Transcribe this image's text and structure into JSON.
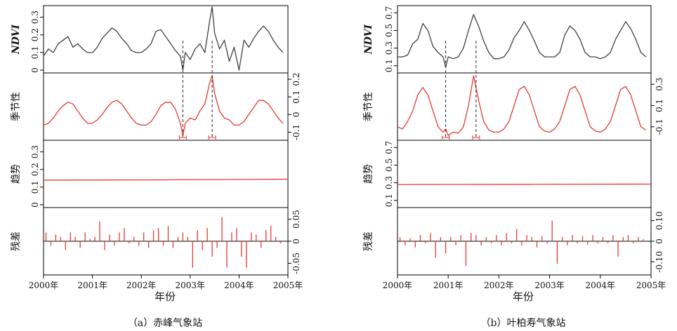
{
  "chart_data": [
    {
      "type": "line",
      "caption": "（a）赤峰气象站",
      "xlabel": "年份",
      "x_ticks": [
        "2000年",
        "2001年",
        "2002年",
        "2003年",
        "2004年",
        "2005年"
      ],
      "xlim": [
        2000,
        2005
      ],
      "panels": [
        {
          "ylabel": "NDVI",
          "ylim": [
            0,
            0.35
          ],
          "ticks": [
            0,
            0.1,
            0.2,
            0.3
          ],
          "tick_labels": [
            "0",
            "0.1",
            "0.2",
            "0.3"
          ],
          "tick_side": "left",
          "series_color": "#404040",
          "kind": "line",
          "x": [
            2000.0,
            2000.1,
            2000.2,
            2000.3,
            2000.4,
            2000.5,
            2000.6,
            2000.7,
            2000.8,
            2000.9,
            2001.0,
            2001.1,
            2001.2,
            2001.3,
            2001.4,
            2001.5,
            2001.6,
            2001.7,
            2001.8,
            2001.9,
            2002.0,
            2002.1,
            2002.2,
            2002.3,
            2002.4,
            2002.5,
            2002.6,
            2002.7,
            2002.8,
            2002.85,
            2002.9,
            2003.0,
            2003.1,
            2003.2,
            2003.3,
            2003.4,
            2003.45,
            2003.5,
            2003.6,
            2003.7,
            2003.8,
            2003.9,
            2004.0,
            2004.1,
            2004.2,
            2004.3,
            2004.4,
            2004.5,
            2004.6,
            2004.7,
            2004.8,
            2004.9
          ],
          "y": [
            0.08,
            0.12,
            0.1,
            0.15,
            0.17,
            0.19,
            0.13,
            0.15,
            0.12,
            0.1,
            0.1,
            0.13,
            0.18,
            0.21,
            0.24,
            0.22,
            0.18,
            0.15,
            0.11,
            0.1,
            0.1,
            0.12,
            0.15,
            0.22,
            0.23,
            0.19,
            0.15,
            0.11,
            0.08,
            0.0,
            0.1,
            0.06,
            0.12,
            0.15,
            0.1,
            0.28,
            0.36,
            0.21,
            0.12,
            0.17,
            0.05,
            0.13,
            0.0,
            0.17,
            0.13,
            0.18,
            0.22,
            0.25,
            0.22,
            0.17,
            0.13,
            0.1
          ]
        },
        {
          "ylabel": "季节性",
          "ylim": [
            -0.13,
            0.22
          ],
          "ticks": [
            -0.1,
            0,
            0.1,
            0.2
          ],
          "tick_labels": [
            "-0.1",
            "0",
            "0.1",
            "0.2"
          ],
          "tick_side": "right",
          "series_color": "#e8392f",
          "kind": "line",
          "x": [
            2000.0,
            2000.1,
            2000.2,
            2000.3,
            2000.4,
            2000.5,
            2000.6,
            2000.7,
            2000.8,
            2000.9,
            2001.0,
            2001.1,
            2001.2,
            2001.3,
            2001.4,
            2001.5,
            2001.6,
            2001.7,
            2001.8,
            2001.9,
            2002.0,
            2002.1,
            2002.2,
            2002.3,
            2002.4,
            2002.5,
            2002.6,
            2002.7,
            2002.8,
            2002.85,
            2002.9,
            2003.0,
            2003.1,
            2003.2,
            2003.3,
            2003.4,
            2003.45,
            2003.5,
            2003.6,
            2003.7,
            2003.8,
            2003.9,
            2004.0,
            2004.1,
            2004.2,
            2004.3,
            2004.4,
            2004.5,
            2004.6,
            2004.7,
            2004.8,
            2004.9
          ],
          "y": [
            -0.06,
            -0.05,
            -0.02,
            0.02,
            0.05,
            0.07,
            0.06,
            0.02,
            -0.02,
            -0.05,
            -0.05,
            -0.03,
            0.0,
            0.04,
            0.07,
            0.08,
            0.06,
            0.02,
            -0.02,
            -0.05,
            -0.06,
            -0.06,
            -0.04,
            0.0,
            0.05,
            0.07,
            0.07,
            0.03,
            -0.05,
            -0.12,
            -0.05,
            -0.02,
            -0.03,
            0.02,
            0.06,
            0.18,
            0.22,
            0.12,
            0.02,
            -0.02,
            -0.03,
            -0.06,
            -0.06,
            -0.04,
            0.0,
            0.04,
            0.08,
            0.08,
            0.06,
            0.02,
            -0.02,
            -0.05
          ]
        },
        {
          "ylabel": "趋势",
          "ylim": [
            0,
            0.35
          ],
          "ticks": [
            0,
            0.1,
            0.2,
            0.3
          ],
          "tick_labels": [
            "0",
            "0.1",
            "0.2",
            "0.3"
          ],
          "tick_side": "left",
          "series_color": "#e8392f",
          "kind": "line",
          "x": [
            2000.0,
            2002.5,
            2005.0
          ],
          "y": [
            0.14,
            0.141,
            0.145
          ]
        },
        {
          "ylabel": "残差",
          "ylim": [
            -0.07,
            0.07
          ],
          "ticks": [
            -0.05,
            0,
            0.05
          ],
          "tick_labels": [
            "-0.05",
            "0",
            "0.05"
          ],
          "tick_side": "right",
          "series_color": "#e8392f",
          "kind": "stem",
          "x": [
            2000.05,
            2000.15,
            2000.25,
            2000.35,
            2000.45,
            2000.55,
            2000.65,
            2000.75,
            2000.85,
            2000.95,
            2001.05,
            2001.15,
            2001.25,
            2001.35,
            2001.45,
            2001.55,
            2001.65,
            2001.75,
            2001.85,
            2001.95,
            2002.05,
            2002.15,
            2002.25,
            2002.35,
            2002.45,
            2002.55,
            2002.65,
            2002.75,
            2002.85,
            2002.95,
            2003.05,
            2003.15,
            2003.25,
            2003.35,
            2003.45,
            2003.55,
            2003.65,
            2003.75,
            2003.85,
            2003.95,
            2004.05,
            2004.15,
            2004.25,
            2004.35,
            2004.45,
            2004.55,
            2004.65,
            2004.75,
            2004.85
          ],
          "y": [
            0.02,
            -0.01,
            0.015,
            0.01,
            -0.02,
            0.02,
            0.01,
            -0.015,
            0.02,
            0.005,
            0.01,
            0.045,
            -0.02,
            0.015,
            -0.01,
            0.02,
            0.03,
            -0.005,
            0.01,
            -0.01,
            0.02,
            -0.015,
            0.025,
            0.03,
            -0.01,
            0.035,
            -0.015,
            0.01,
            0.02,
            0.01,
            -0.06,
            0.025,
            -0.02,
            0.03,
            -0.035,
            -0.015,
            0.055,
            -0.06,
            0.02,
            0.03,
            -0.035,
            -0.06,
            0.02,
            0.015,
            -0.015,
            0.025,
            0.035,
            0.01,
            -0.005
          ]
        }
      ]
    },
    {
      "type": "line",
      "caption": "（b）叶柏寿气象站",
      "xlabel": "年份",
      "x_ticks": [
        "2000年",
        "2001年",
        "2002年",
        "2003年",
        "2004年",
        "2005年"
      ],
      "xlim": [
        2000,
        2005
      ],
      "panels": [
        {
          "ylabel": "NDVI",
          "ylim": [
            0.05,
            0.75
          ],
          "ticks": [
            0.1,
            0.3,
            0.5,
            0.7
          ],
          "tick_labels": [
            "0.1",
            "0.3",
            "0.5",
            "0.7"
          ],
          "tick_side": "left",
          "series_color": "#404040",
          "kind": "line",
          "x": [
            2000.0,
            2000.1,
            2000.2,
            2000.3,
            2000.4,
            2000.5,
            2000.6,
            2000.7,
            2000.8,
            2000.9,
            2000.95,
            2001.0,
            2001.1,
            2001.2,
            2001.3,
            2001.4,
            2001.5,
            2001.6,
            2001.7,
            2001.8,
            2001.9,
            2002.0,
            2002.1,
            2002.2,
            2002.3,
            2002.4,
            2002.5,
            2002.6,
            2002.7,
            2002.8,
            2002.9,
            2003.0,
            2003.1,
            2003.2,
            2003.3,
            2003.4,
            2003.5,
            2003.6,
            2003.7,
            2003.8,
            2003.9,
            2004.0,
            2004.1,
            2004.2,
            2004.3,
            2004.4,
            2004.5,
            2004.6,
            2004.7,
            2004.8,
            2004.9
          ],
          "y": [
            0.2,
            0.2,
            0.22,
            0.35,
            0.4,
            0.58,
            0.5,
            0.32,
            0.25,
            0.2,
            0.08,
            0.2,
            0.18,
            0.2,
            0.3,
            0.5,
            0.68,
            0.55,
            0.38,
            0.25,
            0.18,
            0.18,
            0.2,
            0.28,
            0.42,
            0.5,
            0.6,
            0.5,
            0.38,
            0.25,
            0.2,
            0.2,
            0.2,
            0.25,
            0.45,
            0.55,
            0.5,
            0.4,
            0.25,
            0.2,
            0.2,
            0.18,
            0.2,
            0.25,
            0.4,
            0.5,
            0.6,
            0.52,
            0.4,
            0.25,
            0.2
          ]
        },
        {
          "ylabel": "季节性",
          "ylim": [
            -0.2,
            0.38
          ],
          "ticks": [
            -0.1,
            0.1,
            0.3
          ],
          "tick_labels": [
            "-0.1",
            "0.1",
            "0.3"
          ],
          "tick_side": "right",
          "series_color": "#e8392f",
          "kind": "line",
          "x": [
            2000.0,
            2000.1,
            2000.2,
            2000.3,
            2000.4,
            2000.5,
            2000.6,
            2000.7,
            2000.8,
            2000.9,
            2000.95,
            2001.0,
            2001.1,
            2001.2,
            2001.3,
            2001.4,
            2001.5,
            2001.6,
            2001.7,
            2001.8,
            2001.9,
            2002.0,
            2002.1,
            2002.2,
            2002.3,
            2002.4,
            2002.5,
            2002.6,
            2002.7,
            2002.8,
            2002.9,
            2003.0,
            2003.1,
            2003.2,
            2003.3,
            2003.4,
            2003.5,
            2003.6,
            2003.7,
            2003.8,
            2003.9,
            2004.0,
            2004.1,
            2004.2,
            2004.3,
            2004.4,
            2004.5,
            2004.6,
            2004.7,
            2004.8,
            2004.9
          ],
          "y": [
            -0.1,
            -0.12,
            -0.05,
            0.05,
            0.2,
            0.27,
            0.2,
            0.05,
            -0.1,
            -0.15,
            -0.12,
            -0.18,
            -0.15,
            -0.16,
            -0.1,
            0.1,
            0.38,
            0.15,
            -0.05,
            -0.13,
            -0.15,
            -0.15,
            -0.12,
            -0.05,
            0.1,
            0.25,
            0.28,
            0.2,
            0.05,
            -0.1,
            -0.14,
            -0.15,
            -0.12,
            -0.05,
            0.1,
            0.25,
            0.28,
            0.2,
            0.05,
            -0.1,
            -0.14,
            -0.15,
            -0.12,
            -0.05,
            0.1,
            0.25,
            0.28,
            0.2,
            0.05,
            -0.1,
            -0.13
          ]
        },
        {
          "ylabel": "趋势",
          "ylim": [
            0.05,
            0.75
          ],
          "ticks": [
            0.1,
            0.3,
            0.5,
            0.7
          ],
          "tick_labels": [
            "0.1",
            "0.3",
            "0.5",
            "0.7"
          ],
          "tick_side": "left",
          "series_color": "#e8392f",
          "kind": "line",
          "x": [
            2000.0,
            2002.5,
            2005.0
          ],
          "y": [
            0.28,
            0.282,
            0.285
          ]
        },
        {
          "ylabel": "残差",
          "ylim": [
            -0.15,
            0.15
          ],
          "ticks": [
            -0.1,
            0,
            0.1
          ],
          "tick_labels": [
            "-0.10",
            "0",
            "0.10"
          ],
          "tick_side": "right",
          "series_color": "#e8392f",
          "kind": "stem",
          "x": [
            2000.05,
            2000.15,
            2000.25,
            2000.35,
            2000.45,
            2000.55,
            2000.65,
            2000.75,
            2000.85,
            2000.95,
            2001.05,
            2001.15,
            2001.25,
            2001.35,
            2001.45,
            2001.55,
            2001.65,
            2001.75,
            2001.85,
            2001.95,
            2002.05,
            2002.15,
            2002.25,
            2002.35,
            2002.45,
            2002.55,
            2002.65,
            2002.75,
            2002.85,
            2002.95,
            2003.05,
            2003.15,
            2003.25,
            2003.35,
            2003.45,
            2003.55,
            2003.65,
            2003.75,
            2003.85,
            2003.95,
            2004.05,
            2004.15,
            2004.25,
            2004.35,
            2004.45,
            2004.55,
            2004.65,
            2004.75,
            2004.85
          ],
          "y": [
            0.02,
            -0.02,
            0.015,
            -0.03,
            0.03,
            -0.01,
            0.04,
            -0.08,
            0.02,
            -0.06,
            0.02,
            -0.02,
            0.03,
            -0.12,
            0.04,
            0.03,
            -0.02,
            0.02,
            -0.01,
            0.03,
            -0.02,
            0.04,
            -0.01,
            0.06,
            -0.02,
            0.03,
            0.02,
            -0.03,
            0.025,
            -0.01,
            0.1,
            -0.11,
            0.02,
            -0.02,
            0.03,
            -0.01,
            0.025,
            -0.015,
            0.03,
            -0.01,
            0.02,
            -0.01,
            0.03,
            -0.075,
            0.02,
            0.03,
            -0.01,
            0.02,
            0.01
          ]
        }
      ]
    }
  ],
  "annotations": {
    "a_dashed_x": [
      2002.85,
      2003.45
    ],
    "b_dashed_x": [
      2000.95,
      2001.55
    ]
  }
}
